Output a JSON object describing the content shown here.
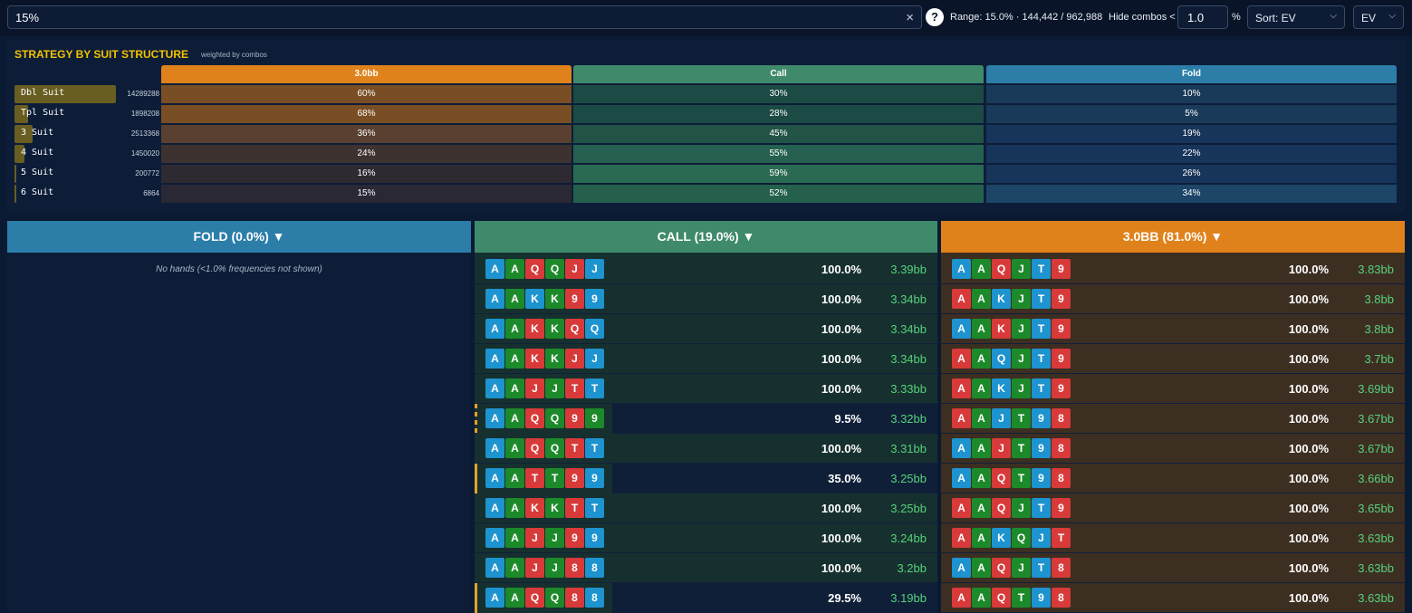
{
  "topbar": {
    "search_value": "15%",
    "clear_icon": "×",
    "help_icon": "?",
    "range_text": "Range: 15.0% · 144,442 / 962,988",
    "hide_label": "Hide combos <",
    "hide_value": "1.0",
    "pct": "%",
    "sort_value": "Sort: EV",
    "metric_value": "EV",
    "chevron": "⌵"
  },
  "strategy": {
    "title": "STRATEGY BY SUIT STRUCTURE",
    "subtitle": "weighted by combos",
    "columns": [
      {
        "label": "3.0bb",
        "color": "#e0821b"
      },
      {
        "label": "Call",
        "color": "#3e8a6a"
      },
      {
        "label": "Fold",
        "color": "#2c7ea8"
      }
    ],
    "rows": [
      {
        "name": "Dbl Suit",
        "count": "14289288",
        "share": 1.0,
        "raise": "60%",
        "call": "30%",
        "fold": "10%"
      },
      {
        "name": "Tpl Suit",
        "count": "1898208",
        "share": 0.13,
        "raise": "68%",
        "call": "28%",
        "fold": "5%"
      },
      {
        "name": "3 Suit",
        "count": "2513368",
        "share": 0.18,
        "raise": "36%",
        "call": "45%",
        "fold": "19%"
      },
      {
        "name": "4 Suit",
        "count": "1450020",
        "share": 0.1,
        "raise": "24%",
        "call": "55%",
        "fold": "22%"
      },
      {
        "name": "5 Suit",
        "count": "200772",
        "share": 0.014,
        "raise": "16%",
        "call": "59%",
        "fold": "26%"
      },
      {
        "name": "6 Suit",
        "count": "6864",
        "share": 0.0005,
        "raise": "15%",
        "call": "52%",
        "fold": "34%"
      }
    ]
  },
  "fold_col": {
    "title": "FOLD (0.0%) ▼",
    "empty_text": "No hands (<1.0% frequencies not shown)"
  },
  "call_col": {
    "title": "CALL (19.0%) ▼",
    "hands": [
      {
        "cards": [
          "A",
          "A",
          "Q",
          "Q",
          "J",
          "J"
        ],
        "suits": [
          "b",
          "g",
          "r",
          "g",
          "r",
          "b"
        ],
        "freq": "100.0%",
        "freq_value": 1.0,
        "ev": "3.39bb"
      },
      {
        "cards": [
          "A",
          "A",
          "K",
          "K",
          "9",
          "9"
        ],
        "suits": [
          "b",
          "g",
          "b",
          "g",
          "r",
          "b"
        ],
        "freq": "100.0%",
        "freq_value": 1.0,
        "ev": "3.34bb"
      },
      {
        "cards": [
          "A",
          "A",
          "K",
          "K",
          "Q",
          "Q"
        ],
        "suits": [
          "b",
          "g",
          "r",
          "g",
          "r",
          "b"
        ],
        "freq": "100.0%",
        "freq_value": 1.0,
        "ev": "3.34bb"
      },
      {
        "cards": [
          "A",
          "A",
          "K",
          "K",
          "J",
          "J"
        ],
        "suits": [
          "b",
          "g",
          "r",
          "g",
          "r",
          "b"
        ],
        "freq": "100.0%",
        "freq_value": 1.0,
        "ev": "3.34bb"
      },
      {
        "cards": [
          "A",
          "A",
          "J",
          "J",
          "T",
          "T"
        ],
        "suits": [
          "b",
          "g",
          "r",
          "g",
          "r",
          "b"
        ],
        "freq": "100.0%",
        "freq_value": 1.0,
        "ev": "3.33bb"
      },
      {
        "cards": [
          "A",
          "A",
          "Q",
          "Q",
          "9",
          "9"
        ],
        "suits": [
          "b",
          "g",
          "r",
          "g",
          "r",
          "g"
        ],
        "freq": "9.5%",
        "freq_value": 0.095,
        "ev": "3.32bb",
        "edge": "dash"
      },
      {
        "cards": [
          "A",
          "A",
          "Q",
          "Q",
          "T",
          "T"
        ],
        "suits": [
          "b",
          "g",
          "r",
          "g",
          "r",
          "b"
        ],
        "freq": "100.0%",
        "freq_value": 1.0,
        "ev": "3.31bb"
      },
      {
        "cards": [
          "A",
          "A",
          "T",
          "T",
          "9",
          "9"
        ],
        "suits": [
          "b",
          "g",
          "r",
          "g",
          "r",
          "b"
        ],
        "freq": "35.0%",
        "freq_value": 0.35,
        "ev": "3.25bb",
        "edge": "solid"
      },
      {
        "cards": [
          "A",
          "A",
          "K",
          "K",
          "T",
          "T"
        ],
        "suits": [
          "b",
          "g",
          "r",
          "g",
          "r",
          "b"
        ],
        "freq": "100.0%",
        "freq_value": 1.0,
        "ev": "3.25bb"
      },
      {
        "cards": [
          "A",
          "A",
          "J",
          "J",
          "9",
          "9"
        ],
        "suits": [
          "b",
          "g",
          "r",
          "g",
          "r",
          "b"
        ],
        "freq": "100.0%",
        "freq_value": 1.0,
        "ev": "3.24bb"
      },
      {
        "cards": [
          "A",
          "A",
          "J",
          "J",
          "8",
          "8"
        ],
        "suits": [
          "b",
          "g",
          "r",
          "g",
          "r",
          "b"
        ],
        "freq": "100.0%",
        "freq_value": 1.0,
        "ev": "3.2bb"
      },
      {
        "cards": [
          "A",
          "A",
          "Q",
          "Q",
          "8",
          "8"
        ],
        "suits": [
          "b",
          "g",
          "r",
          "g",
          "r",
          "b"
        ],
        "freq": "29.5%",
        "freq_value": 0.295,
        "ev": "3.19bb",
        "edge": "solid"
      }
    ]
  },
  "raise_col": {
    "title": "3.0BB (81.0%) ▼",
    "hands": [
      {
        "cards": [
          "A",
          "A",
          "Q",
          "J",
          "T",
          "9"
        ],
        "suits": [
          "b",
          "g",
          "r",
          "g",
          "b",
          "r"
        ],
        "freq": "100.0%",
        "ev": "3.83bb"
      },
      {
        "cards": [
          "A",
          "A",
          "K",
          "J",
          "T",
          "9"
        ],
        "suits": [
          "r",
          "g",
          "b",
          "g",
          "b",
          "r"
        ],
        "freq": "100.0%",
        "ev": "3.8bb"
      },
      {
        "cards": [
          "A",
          "A",
          "K",
          "J",
          "T",
          "9"
        ],
        "suits": [
          "b",
          "g",
          "r",
          "g",
          "b",
          "r"
        ],
        "freq": "100.0%",
        "ev": "3.8bb"
      },
      {
        "cards": [
          "A",
          "A",
          "Q",
          "J",
          "T",
          "9"
        ],
        "suits": [
          "r",
          "g",
          "b",
          "g",
          "b",
          "r"
        ],
        "freq": "100.0%",
        "ev": "3.7bb"
      },
      {
        "cards": [
          "A",
          "A",
          "K",
          "J",
          "T",
          "9"
        ],
        "suits": [
          "r",
          "g",
          "b",
          "g",
          "b",
          "r"
        ],
        "freq": "100.0%",
        "ev": "3.69bb"
      },
      {
        "cards": [
          "A",
          "A",
          "J",
          "T",
          "9",
          "8"
        ],
        "suits": [
          "r",
          "g",
          "b",
          "g",
          "b",
          "r"
        ],
        "freq": "100.0%",
        "ev": "3.67bb"
      },
      {
        "cards": [
          "A",
          "A",
          "J",
          "T",
          "9",
          "8"
        ],
        "suits": [
          "b",
          "g",
          "r",
          "g",
          "b",
          "r"
        ],
        "freq": "100.0%",
        "ev": "3.67bb"
      },
      {
        "cards": [
          "A",
          "A",
          "Q",
          "T",
          "9",
          "8"
        ],
        "suits": [
          "b",
          "g",
          "r",
          "g",
          "b",
          "r"
        ],
        "freq": "100.0%",
        "ev": "3.66bb"
      },
      {
        "cards": [
          "A",
          "A",
          "Q",
          "J",
          "T",
          "9"
        ],
        "suits": [
          "r",
          "g",
          "r",
          "g",
          "b",
          "r"
        ],
        "freq": "100.0%",
        "ev": "3.65bb"
      },
      {
        "cards": [
          "A",
          "A",
          "K",
          "Q",
          "J",
          "T"
        ],
        "suits": [
          "r",
          "g",
          "b",
          "g",
          "b",
          "r"
        ],
        "freq": "100.0%",
        "ev": "3.63bb"
      },
      {
        "cards": [
          "A",
          "A",
          "Q",
          "J",
          "T",
          "8"
        ],
        "suits": [
          "b",
          "g",
          "r",
          "g",
          "b",
          "r"
        ],
        "freq": "100.0%",
        "ev": "3.63bb"
      },
      {
        "cards": [
          "A",
          "A",
          "Q",
          "T",
          "9",
          "8"
        ],
        "suits": [
          "r",
          "g",
          "r",
          "g",
          "b",
          "r"
        ],
        "freq": "100.0%",
        "ev": "3.63bb"
      }
    ]
  }
}
